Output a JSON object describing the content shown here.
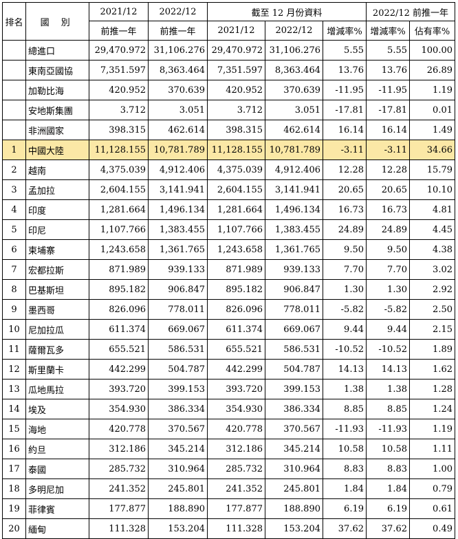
{
  "headers": {
    "rank": "排名",
    "country": "國 別",
    "col_2021_year": "2021/12",
    "col_2021_sub": "前推一年",
    "col_2022_year": "2022/12",
    "col_2022_sub": "前推一年",
    "group_title": "截至 12 月份資料",
    "group_2021": "2021/12",
    "group_2022": "2022/12",
    "group_change": "增減率%",
    "right_title": "2022/12 前推一年",
    "right_change": "增減率%",
    "right_share": "佔有率%"
  },
  "highlight_color": "#fbe8a6",
  "rows": [
    {
      "rank": "",
      "name": "總進口",
      "a": "29,470.972",
      "b": "31,106.276",
      "c": "29,470.972",
      "d": "31,106.276",
      "e": "5.55",
      "f": "5.55",
      "g": "100.00"
    },
    {
      "rank": "",
      "name": "東南亞國協",
      "a": "7,351.597",
      "b": "8,363.464",
      "c": "7,351.597",
      "d": "8,363.464",
      "e": "13.76",
      "f": "13.76",
      "g": "26.89"
    },
    {
      "rank": "",
      "name": "加勒比海",
      "a": "420.952",
      "b": "370.639",
      "c": "420.952",
      "d": "370.639",
      "e": "-11.95",
      "f": "-11.95",
      "g": "1.19"
    },
    {
      "rank": "",
      "name": "安地斯集團",
      "a": "3.712",
      "b": "3.051",
      "c": "3.712",
      "d": "3.051",
      "e": "-17.81",
      "f": "-17.81",
      "g": "0.01"
    },
    {
      "rank": "",
      "name": "非洲國家",
      "a": "398.315",
      "b": "462.614",
      "c": "398.315",
      "d": "462.614",
      "e": "16.14",
      "f": "16.14",
      "g": "1.49"
    },
    {
      "rank": "1",
      "name": "中國大陸",
      "a": "11,128.155",
      "b": "10,781.789",
      "c": "11,128.155",
      "d": "10,781.789",
      "e": "-3.11",
      "f": "-3.11",
      "g": "34.66",
      "highlight": true
    },
    {
      "rank": "2",
      "name": "越南",
      "a": "4,375.039",
      "b": "4,912.406",
      "c": "4,375.039",
      "d": "4,912.406",
      "e": "12.28",
      "f": "12.28",
      "g": "15.79"
    },
    {
      "rank": "3",
      "name": "孟加拉",
      "a": "2,604.155",
      "b": "3,141.941",
      "c": "2,604.155",
      "d": "3,141.941",
      "e": "20.65",
      "f": "20.65",
      "g": "10.10"
    },
    {
      "rank": "4",
      "name": "印度",
      "a": "1,281.664",
      "b": "1,496.134",
      "c": "1,281.664",
      "d": "1,496.134",
      "e": "16.73",
      "f": "16.73",
      "g": "4.81"
    },
    {
      "rank": "5",
      "name": "印尼",
      "a": "1,107.766",
      "b": "1,383.455",
      "c": "1,107.766",
      "d": "1,383.455",
      "e": "24.89",
      "f": "24.89",
      "g": "4.45"
    },
    {
      "rank": "6",
      "name": "柬埔寨",
      "a": "1,243.658",
      "b": "1,361.765",
      "c": "1,243.658",
      "d": "1,361.765",
      "e": "9.50",
      "f": "9.50",
      "g": "4.38"
    },
    {
      "rank": "7",
      "name": "宏都拉斯",
      "a": "871.989",
      "b": "939.133",
      "c": "871.989",
      "d": "939.133",
      "e": "7.70",
      "f": "7.70",
      "g": "3.02"
    },
    {
      "rank": "8",
      "name": "巴基斯坦",
      "a": "895.182",
      "b": "906.847",
      "c": "895.182",
      "d": "906.847",
      "e": "1.30",
      "f": "1.30",
      "g": "2.92"
    },
    {
      "rank": "9",
      "name": "墨西哥",
      "a": "826.096",
      "b": "778.011",
      "c": "826.096",
      "d": "778.011",
      "e": "-5.82",
      "f": "-5.82",
      "g": "2.50"
    },
    {
      "rank": "10",
      "name": "尼加拉瓜",
      "a": "611.374",
      "b": "669.067",
      "c": "611.374",
      "d": "669.067",
      "e": "9.44",
      "f": "9.44",
      "g": "2.15"
    },
    {
      "rank": "11",
      "name": "薩爾瓦多",
      "a": "655.521",
      "b": "586.531",
      "c": "655.521",
      "d": "586.531",
      "e": "-10.52",
      "f": "-10.52",
      "g": "1.89"
    },
    {
      "rank": "12",
      "name": "斯里蘭卡",
      "a": "442.299",
      "b": "504.787",
      "c": "442.299",
      "d": "504.787",
      "e": "14.13",
      "f": "14.13",
      "g": "1.62"
    },
    {
      "rank": "13",
      "name": "瓜地馬拉",
      "a": "393.720",
      "b": "399.153",
      "c": "393.720",
      "d": "399.153",
      "e": "1.38",
      "f": "1.38",
      "g": "1.28"
    },
    {
      "rank": "14",
      "name": "埃及",
      "a": "354.930",
      "b": "386.334",
      "c": "354.930",
      "d": "386.334",
      "e": "8.85",
      "f": "8.85",
      "g": "1.24"
    },
    {
      "rank": "15",
      "name": "海地",
      "a": "420.778",
      "b": "370.567",
      "c": "420.778",
      "d": "370.567",
      "e": "-11.93",
      "f": "-11.93",
      "g": "1.19"
    },
    {
      "rank": "16",
      "name": "約旦",
      "a": "312.186",
      "b": "345.214",
      "c": "312.186",
      "d": "345.214",
      "e": "10.58",
      "f": "10.58",
      "g": "1.11"
    },
    {
      "rank": "17",
      "name": "泰國",
      "a": "285.732",
      "b": "310.964",
      "c": "285.732",
      "d": "310.964",
      "e": "8.83",
      "f": "8.83",
      "g": "1.00"
    },
    {
      "rank": "18",
      "name": "多明尼加",
      "a": "241.352",
      "b": "245.801",
      "c": "241.352",
      "d": "245.801",
      "e": "1.84",
      "f": "1.84",
      "g": "0.79"
    },
    {
      "rank": "19",
      "name": "菲律賓",
      "a": "177.877",
      "b": "188.890",
      "c": "177.877",
      "d": "188.890",
      "e": "6.19",
      "f": "6.19",
      "g": "0.61"
    },
    {
      "rank": "20",
      "name": "緬甸",
      "a": "111.328",
      "b": "153.204",
      "c": "111.328",
      "d": "153.204",
      "e": "37.62",
      "f": "37.62",
      "g": "0.49"
    }
  ]
}
